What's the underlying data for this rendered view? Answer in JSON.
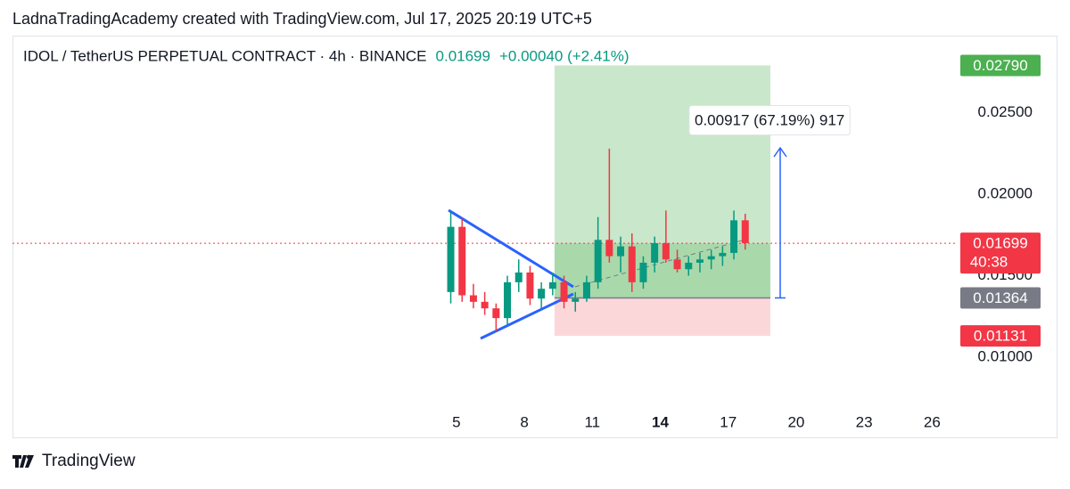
{
  "header": {
    "credit": "LadnaTradingAcademy created with TradingView.com, Jul 17, 2025 20:19 UTC+5"
  },
  "footer": {
    "brand": "TradingView"
  },
  "chart_data": {
    "type": "candlestick",
    "symbol": "IDOL / TetherUS PERPETUAL CONTRACT · 4h · BINANCE",
    "last": "0.01699",
    "change": "+0.00040 (+2.41%)",
    "up_color": "#089981",
    "down_color": "#f23645",
    "x": [
      4.75,
      5.25,
      5.75,
      6.25,
      6.75,
      7.25,
      7.75,
      8.25,
      8.75,
      9.25,
      9.75,
      10.25,
      10.75,
      11.25,
      11.75,
      12.25,
      12.75,
      13.25,
      13.75,
      14.25,
      14.75,
      15.25,
      15.75,
      16.25,
      16.75,
      17.25,
      17.75
    ],
    "open": [
      0.014,
      0.018,
      0.0138,
      0.0134,
      0.013,
      0.0124,
      0.0146,
      0.0152,
      0.0136,
      0.0142,
      0.0146,
      0.0134,
      0.0136,
      0.0146,
      0.0172,
      0.0162,
      0.0168,
      0.0146,
      0.0158,
      0.017,
      0.016,
      0.0154,
      0.0158,
      0.016,
      0.0162,
      0.0164,
      0.0184
    ],
    "high": [
      0.0189,
      0.0185,
      0.0145,
      0.014,
      0.0133,
      0.015,
      0.016,
      0.0156,
      0.0146,
      0.0152,
      0.015,
      0.014,
      0.015,
      0.0186,
      0.0228,
      0.0174,
      0.0176,
      0.0162,
      0.0174,
      0.019,
      0.0166,
      0.0162,
      0.0164,
      0.0166,
      0.0168,
      0.019,
      0.0188
    ],
    "low": [
      0.0133,
      0.0134,
      0.013,
      0.0126,
      0.0116,
      0.012,
      0.014,
      0.0132,
      0.013,
      0.0138,
      0.013,
      0.0128,
      0.0134,
      0.0142,
      0.0158,
      0.0152,
      0.014,
      0.0142,
      0.0152,
      0.0158,
      0.0152,
      0.015,
      0.0152,
      0.0154,
      0.0156,
      0.016,
      0.0166
    ],
    "close": [
      0.018,
      0.0138,
      0.0134,
      0.013,
      0.0124,
      0.0146,
      0.0152,
      0.0136,
      0.0142,
      0.0146,
      0.0134,
      0.0136,
      0.0146,
      0.0172,
      0.0162,
      0.0168,
      0.0146,
      0.0158,
      0.017,
      0.016,
      0.0154,
      0.0158,
      0.016,
      0.0162,
      0.0164,
      0.0184,
      0.017
    ],
    "xlim": [
      -14.6,
      27.05
    ],
    "xticks": [
      5,
      8,
      11,
      14,
      17,
      20,
      23,
      26
    ],
    "xtick_bold": 14,
    "ylim": [
      0.00678,
      0.02973
    ],
    "yticks": [
      {
        "value": 0.025,
        "label": "0.02500"
      },
      {
        "value": 0.02,
        "label": "0.02000"
      },
      {
        "value": 0.015,
        "label": "0.01500"
      },
      {
        "value": 0.01,
        "label": "0.01000"
      }
    ],
    "last_price": {
      "value": 0.01699,
      "label": "0.01699",
      "countdown": "40:38"
    },
    "position": {
      "x": [
        9.33,
        18.86
      ],
      "target": {
        "value": 0.0279,
        "label": "0.02790"
      },
      "entry": {
        "value": 0.01364,
        "label": "0.01364"
      },
      "stop": {
        "value": 0.01131,
        "label": "0.01131"
      },
      "measure": "0.00917 (67.19%) 917"
    }
  }
}
